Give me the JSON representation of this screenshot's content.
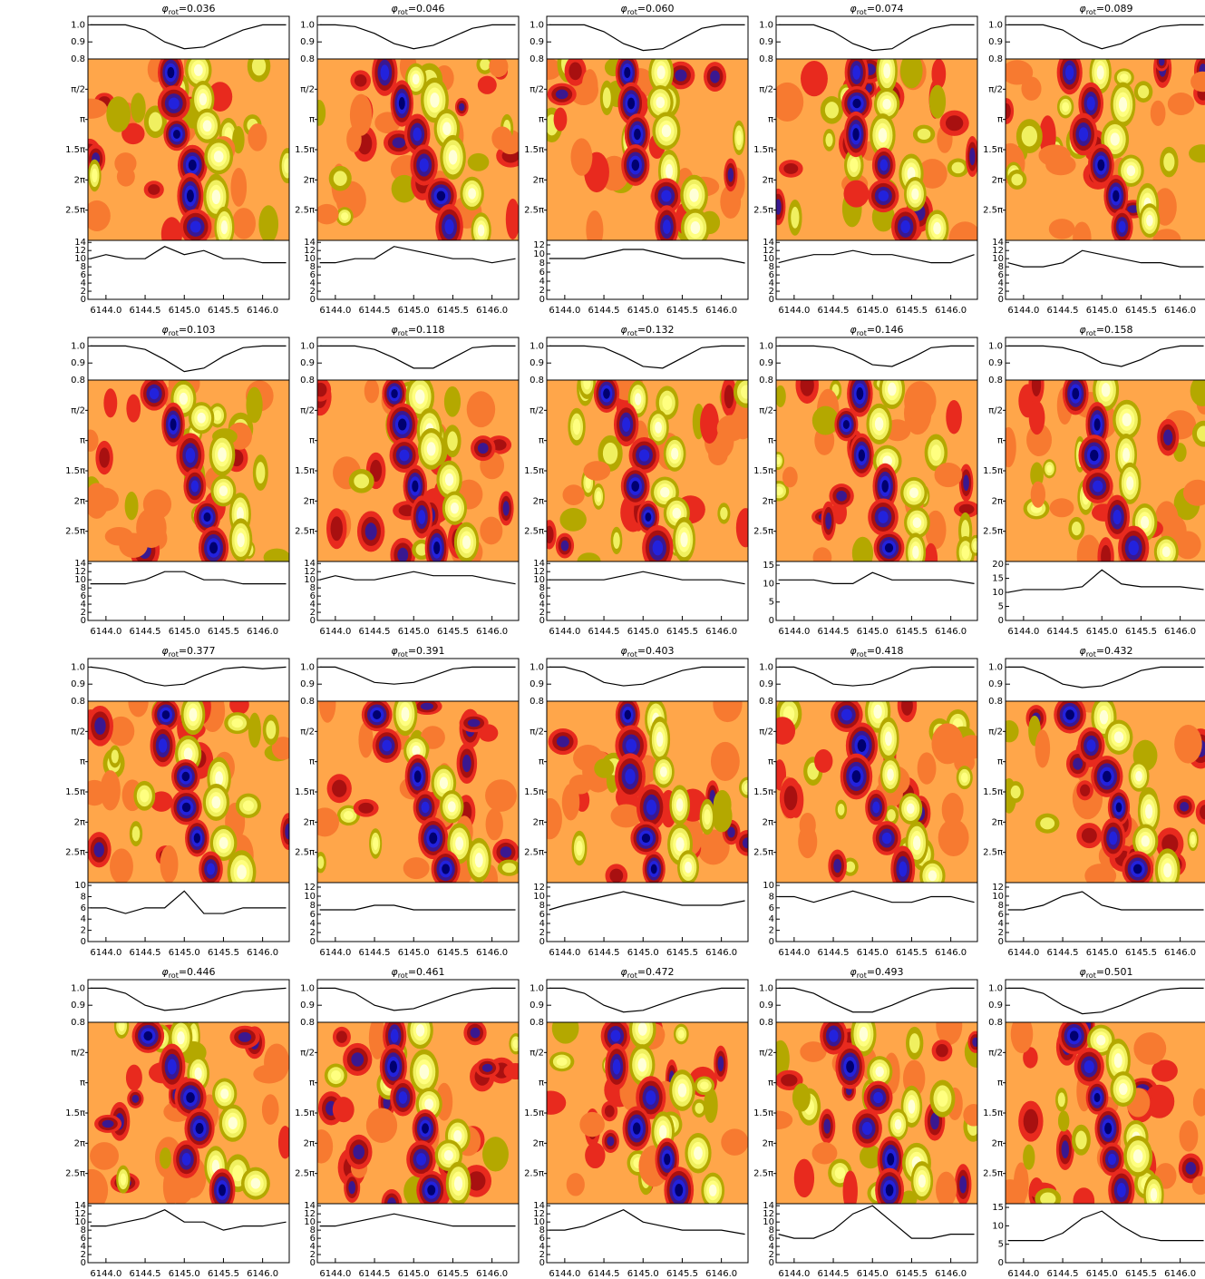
{
  "chart_data": {
    "type": "panel-grid",
    "x": [
      6143.8,
      6144.0,
      6144.25,
      6144.5,
      6144.75,
      6145.0,
      6145.25,
      6145.5,
      6145.75,
      6146.0,
      6146.3
    ],
    "xlim": [
      6143.77,
      6146.34
    ],
    "xticks": [
      {
        "value": 6144,
        "label": "6144.0"
      },
      {
        "value": 6144.5,
        "label": "6144.5"
      },
      {
        "value": 6145,
        "label": "6145.0"
      },
      {
        "value": 6145.5,
        "label": "6145.5"
      },
      {
        "value": 6146,
        "label": "6146.0"
      }
    ],
    "profile_ylim": [
      0.8,
      1.05
    ],
    "profile_yticks": [
      {
        "value": 0.8,
        "label": "0.8"
      },
      {
        "value": 0.9,
        "label": "0.9"
      },
      {
        "value": 1,
        "label": "1.0"
      }
    ],
    "map_ylim": [
      0,
      3
    ],
    "map_yticks": [
      {
        "value": 0.5,
        "label": "π/2"
      },
      {
        "value": 1,
        "label": "π"
      },
      {
        "value": 1.5,
        "label": "1.5π"
      },
      {
        "value": 2,
        "label": "2π"
      },
      {
        "value": 2.5,
        "label": "2.5π"
      }
    ],
    "panels": [
      {
        "title": [
          "φ",
          "rot",
          "=0.036"
        ],
        "profile": [
          1,
          1,
          1,
          0.97,
          0.9,
          0.86,
          0.87,
          0.92,
          0.97,
          1,
          1
        ],
        "ylim": [
          0,
          14.5
        ],
        "yticks": [
          0,
          2,
          4,
          6,
          8,
          10,
          12,
          14
        ],
        "values": [
          10,
          11,
          10,
          10,
          13,
          11,
          12,
          10,
          10,
          9,
          9
        ]
      },
      {
        "title": [
          "φ",
          "rot",
          "=0.046"
        ],
        "profile": [
          1,
          1,
          0.99,
          0.95,
          0.89,
          0.86,
          0.88,
          0.93,
          0.98,
          1,
          1
        ],
        "ylim": [
          0,
          14.5
        ],
        "yticks": [
          0,
          2,
          4,
          6,
          8,
          10,
          12,
          14
        ],
        "values": [
          9,
          9,
          10,
          10,
          13,
          12,
          11,
          10,
          10,
          9,
          10
        ]
      },
      {
        "title": [
          "φ",
          "rot",
          "=0.060"
        ],
        "profile": [
          1,
          1,
          1,
          0.96,
          0.89,
          0.85,
          0.86,
          0.92,
          0.98,
          1,
          1
        ],
        "ylim": [
          0,
          13
        ],
        "yticks": [
          0,
          2,
          4,
          6,
          8,
          10,
          12
        ],
        "values": [
          9,
          9,
          9,
          10,
          11,
          11,
          10,
          9,
          9,
          9,
          8
        ]
      },
      {
        "title": [
          "φ",
          "rot",
          "=0.074"
        ],
        "profile": [
          1,
          1,
          1,
          0.96,
          0.89,
          0.85,
          0.86,
          0.93,
          0.98,
          1,
          1
        ],
        "ylim": [
          0,
          14.5
        ],
        "yticks": [
          0,
          2,
          4,
          6,
          8,
          10,
          12,
          14
        ],
        "values": [
          9,
          10,
          11,
          11,
          12,
          11,
          11,
          10,
          9,
          9,
          11
        ]
      },
      {
        "title": [
          "φ",
          "rot",
          "=0.089"
        ],
        "profile": [
          1,
          1,
          1,
          0.97,
          0.9,
          0.86,
          0.89,
          0.95,
          0.99,
          1,
          1
        ],
        "ylim": [
          0,
          14.5
        ],
        "yticks": [
          0,
          2,
          4,
          6,
          8,
          10,
          12,
          14
        ],
        "values": [
          9,
          8,
          8,
          9,
          12,
          11,
          10,
          9,
          9,
          8,
          8
        ]
      },
      {
        "title": [
          "φ",
          "rot",
          "=0.103"
        ],
        "profile": [
          1,
          1,
          1,
          0.98,
          0.92,
          0.85,
          0.87,
          0.94,
          0.99,
          1,
          1
        ],
        "ylim": [
          0,
          14.5
        ],
        "yticks": [
          0,
          2,
          4,
          6,
          8,
          10,
          12,
          14
        ],
        "values": [
          9,
          9,
          9,
          10,
          12,
          12,
          10,
          10,
          9,
          9,
          9
        ]
      },
      {
        "title": [
          "φ",
          "rot",
          "=0.118"
        ],
        "profile": [
          1,
          1,
          1,
          0.98,
          0.93,
          0.87,
          0.87,
          0.93,
          0.99,
          1,
          1
        ],
        "ylim": [
          0,
          14.5
        ],
        "yticks": [
          0,
          2,
          4,
          6,
          8,
          10,
          12,
          14
        ],
        "values": [
          10,
          11,
          10,
          10,
          11,
          12,
          11,
          11,
          11,
          10,
          9
        ]
      },
      {
        "title": [
          "φ",
          "rot",
          "=0.132"
        ],
        "profile": [
          1,
          1,
          1,
          0.99,
          0.94,
          0.88,
          0.87,
          0.93,
          0.99,
          1,
          1
        ],
        "ylim": [
          0,
          14.5
        ],
        "yticks": [
          0,
          2,
          4,
          6,
          8,
          10,
          12,
          14
        ],
        "values": [
          10,
          10,
          10,
          10,
          11,
          12,
          11,
          10,
          10,
          10,
          9
        ]
      },
      {
        "title": [
          "φ",
          "rot",
          "=0.146"
        ],
        "profile": [
          1,
          1,
          1,
          0.99,
          0.95,
          0.89,
          0.88,
          0.93,
          0.99,
          1,
          1
        ],
        "ylim": [
          0,
          16
        ],
        "yticks": [
          0,
          5,
          10,
          15
        ],
        "values": [
          11,
          11,
          11,
          10,
          10,
          13,
          11,
          11,
          11,
          11,
          10
        ]
      },
      {
        "title": [
          "φ",
          "rot",
          "=0.158"
        ],
        "profile": [
          1,
          1,
          1,
          0.99,
          0.96,
          0.9,
          0.88,
          0.92,
          0.98,
          1,
          1
        ],
        "ylim": [
          0,
          21
        ],
        "yticks": [
          0,
          5,
          10,
          15,
          20
        ],
        "values": [
          10,
          11,
          11,
          11,
          12,
          18,
          13,
          12,
          12,
          12,
          11
        ]
      },
      {
        "title": [
          "φ",
          "rot",
          "=0.377"
        ],
        "profile": [
          1,
          0.99,
          0.96,
          0.91,
          0.89,
          0.9,
          0.95,
          0.99,
          1,
          0.99,
          1
        ],
        "ylim": [
          0,
          10.5
        ],
        "yticks": [
          0,
          2,
          4,
          6,
          8,
          10
        ],
        "values": [
          6,
          6,
          5,
          6,
          6,
          9,
          5,
          5,
          6,
          6,
          6
        ]
      },
      {
        "title": [
          "φ",
          "rot",
          "=0.391"
        ],
        "profile": [
          1,
          1,
          0.96,
          0.91,
          0.9,
          0.91,
          0.95,
          0.99,
          1,
          1,
          1
        ],
        "ylim": [
          0,
          13
        ],
        "yticks": [
          0,
          2,
          4,
          6,
          8,
          10,
          12
        ],
        "values": [
          7,
          7,
          7,
          8,
          8,
          7,
          7,
          7,
          7,
          7,
          7
        ]
      },
      {
        "title": [
          "φ",
          "rot",
          "=0.403"
        ],
        "profile": [
          1,
          1,
          0.97,
          0.91,
          0.89,
          0.9,
          0.94,
          0.98,
          1,
          1,
          1
        ],
        "ylim": [
          0,
          13
        ],
        "yticks": [
          0,
          2,
          4,
          6,
          8,
          10,
          12
        ],
        "values": [
          7,
          8,
          9,
          10,
          11,
          10,
          9,
          8,
          8,
          8,
          9
        ]
      },
      {
        "title": [
          "φ",
          "rot",
          "=0.418"
        ],
        "profile": [
          1,
          1,
          0.96,
          0.9,
          0.89,
          0.9,
          0.94,
          0.99,
          1,
          1,
          1
        ],
        "ylim": [
          0,
          10.5
        ],
        "yticks": [
          0,
          2,
          4,
          6,
          8,
          10
        ],
        "values": [
          8,
          8,
          7,
          8,
          9,
          8,
          7,
          7,
          8,
          8,
          7
        ]
      },
      {
        "title": [
          "φ",
          "rot",
          "=0.432"
        ],
        "profile": [
          1,
          1,
          0.96,
          0.9,
          0.88,
          0.89,
          0.93,
          0.98,
          1,
          1,
          1
        ],
        "ylim": [
          0,
          13
        ],
        "yticks": [
          0,
          2,
          4,
          6,
          8,
          10,
          12
        ],
        "values": [
          7,
          7,
          8,
          10,
          11,
          8,
          7,
          7,
          7,
          7,
          7
        ]
      },
      {
        "title": [
          "φ",
          "rot",
          "=0.446"
        ],
        "profile": [
          1,
          1,
          0.97,
          0.9,
          0.87,
          0.88,
          0.91,
          0.95,
          0.98,
          0.99,
          1
        ],
        "ylim": [
          0,
          14.5
        ],
        "yticks": [
          0,
          2,
          4,
          6,
          8,
          10,
          12,
          14
        ],
        "values": [
          9,
          9,
          10,
          11,
          13,
          10,
          10,
          8,
          9,
          9,
          10
        ]
      },
      {
        "title": [
          "φ",
          "rot",
          "=0.461"
        ],
        "profile": [
          1,
          1,
          0.97,
          0.9,
          0.87,
          0.88,
          0.92,
          0.96,
          0.99,
          1,
          1
        ],
        "ylim": [
          0,
          14.5
        ],
        "yticks": [
          0,
          2,
          4,
          6,
          8,
          10,
          12,
          14
        ],
        "values": [
          9,
          9,
          10,
          11,
          12,
          11,
          10,
          9,
          9,
          9,
          9
        ]
      },
      {
        "title": [
          "φ",
          "rot",
          "=0.472"
        ],
        "profile": [
          1,
          1,
          0.97,
          0.9,
          0.86,
          0.87,
          0.91,
          0.95,
          0.98,
          1,
          1
        ],
        "ylim": [
          0,
          14.5
        ],
        "yticks": [
          0,
          2,
          4,
          6,
          8,
          10,
          12,
          14
        ],
        "values": [
          8,
          8,
          9,
          11,
          13,
          10,
          9,
          8,
          8,
          8,
          7
        ]
      },
      {
        "title": [
          "φ",
          "rot",
          "=0.493"
        ],
        "profile": [
          1,
          1,
          0.97,
          0.91,
          0.86,
          0.86,
          0.9,
          0.95,
          0.99,
          1,
          1
        ],
        "ylim": [
          0,
          14.5
        ],
        "yticks": [
          0,
          2,
          4,
          6,
          8,
          10,
          12,
          14
        ],
        "values": [
          7,
          6,
          6,
          8,
          12,
          14,
          10,
          6,
          6,
          7,
          7
        ]
      },
      {
        "title": [
          "φ",
          "rot",
          "=0.501"
        ],
        "profile": [
          1,
          1,
          0.97,
          0.9,
          0.85,
          0.86,
          0.9,
          0.95,
          0.99,
          1,
          1
        ],
        "ylim": [
          0,
          16
        ],
        "yticks": [
          0,
          5,
          10,
          15
        ],
        "values": [
          6,
          6,
          6,
          8,
          12,
          14,
          10,
          7,
          6,
          6,
          6
        ]
      }
    ]
  }
}
